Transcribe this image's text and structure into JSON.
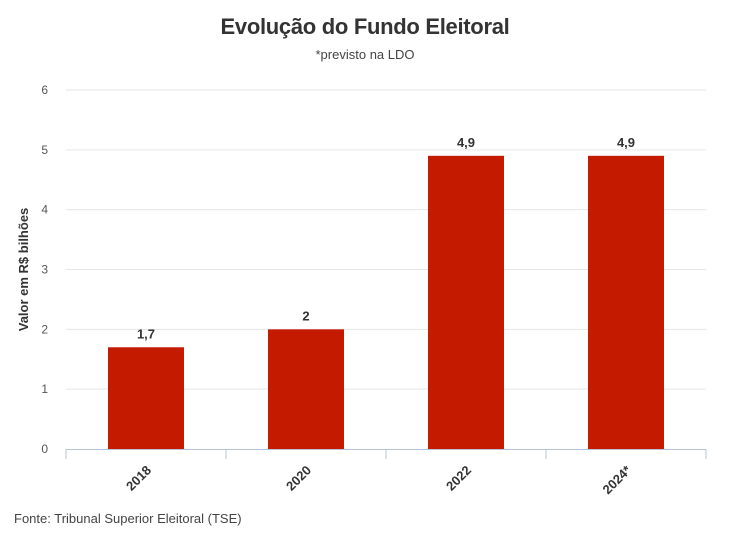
{
  "chart_data": {
    "type": "bar",
    "title": "Evolução do Fundo Eleitoral",
    "subtitle": "*previsto na LDO",
    "categories": [
      "2018",
      "2020",
      "2022",
      "2024*"
    ],
    "values": [
      1.7,
      2,
      4.9,
      4.9
    ],
    "value_labels": [
      "1,7",
      "2",
      "4,9",
      "4,9"
    ],
    "xlabel": "",
    "ylabel": "Valor em R$ bilhões",
    "ylim": [
      0,
      6
    ],
    "yticks": [
      0,
      1,
      2,
      3,
      4,
      5,
      6
    ],
    "grid": true,
    "legend": "none",
    "bar_color": "#c41a00",
    "source": "Fonte: Tribunal Superior Eleitoral (TSE)"
  }
}
